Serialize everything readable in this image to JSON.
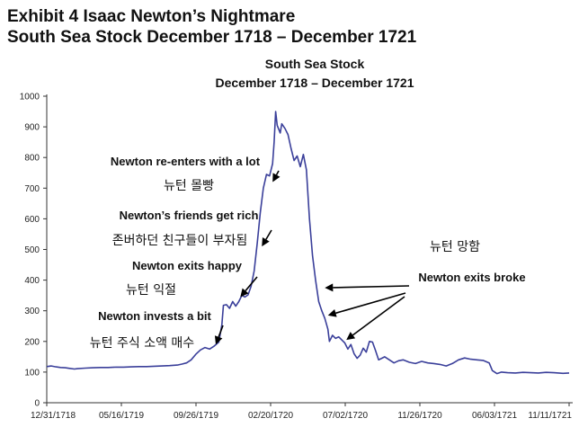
{
  "exhibit": {
    "line1": "Exhibit 4  Isaac Newton’s Nightmare",
    "line2": "South Sea Stock December 1718 – December 1721"
  },
  "chart_data": {
    "type": "line",
    "title": "South Sea Stock",
    "subtitle": "December 1718 – December 1721",
    "xlabel": "",
    "ylabel": "",
    "ylim": [
      0,
      1000
    ],
    "yticks": [
      0,
      100,
      200,
      300,
      400,
      500,
      600,
      700,
      800,
      900,
      1000
    ],
    "x_tick_labels": [
      "12/31/1718",
      "05/16/1719",
      "09/26/1719",
      "02/20/1720",
      "07/02/1720",
      "11/26/1720",
      "06/03/1721",
      "11/11/1721"
    ],
    "grid": false,
    "legend": "none",
    "line_color": "#3a3f9a",
    "series": [
      {
        "name": "",
        "points": [
          [
            0,
            118
          ],
          [
            3,
            120
          ],
          [
            6,
            117
          ],
          [
            9,
            115
          ],
          [
            12,
            114
          ],
          [
            15,
            112
          ],
          [
            18,
            110
          ],
          [
            20,
            111
          ],
          [
            25,
            113
          ],
          [
            30,
            114
          ],
          [
            35,
            115
          ],
          [
            40,
            115
          ],
          [
            45,
            116
          ],
          [
            50,
            116
          ],
          [
            55,
            117
          ],
          [
            60,
            118
          ],
          [
            65,
            118
          ],
          [
            70,
            119
          ],
          [
            75,
            120
          ],
          [
            80,
            121
          ],
          [
            85,
            123
          ],
          [
            88,
            126
          ],
          [
            91,
            130
          ],
          [
            94,
            140
          ],
          [
            97,
            158
          ],
          [
            100,
            172
          ],
          [
            103,
            180
          ],
          [
            106,
            175
          ],
          [
            109,
            185
          ],
          [
            112,
            198
          ],
          [
            114,
            255
          ],
          [
            115,
            318
          ],
          [
            117,
            320
          ],
          [
            119,
            308
          ],
          [
            121,
            330
          ],
          [
            123,
            315
          ],
          [
            125,
            330
          ],
          [
            127,
            350
          ],
          [
            129,
            345
          ],
          [
            131,
            352
          ],
          [
            133,
            380
          ],
          [
            135,
            430
          ],
          [
            137,
            520
          ],
          [
            139,
            620
          ],
          [
            141,
            700
          ],
          [
            143,
            745
          ],
          [
            145,
            740
          ],
          [
            147,
            780
          ],
          [
            148,
            850
          ],
          [
            149,
            950
          ],
          [
            150,
            905
          ],
          [
            152,
            880
          ],
          [
            153,
            910
          ],
          [
            155,
            895
          ],
          [
            157,
            875
          ],
          [
            159,
            830
          ],
          [
            161,
            790
          ],
          [
            163,
            805
          ],
          [
            165,
            770
          ],
          [
            167,
            810
          ],
          [
            169,
            760
          ],
          [
            171,
            600
          ],
          [
            173,
            480
          ],
          [
            175,
            400
          ],
          [
            177,
            330
          ],
          [
            179,
            300
          ],
          [
            181,
            275
          ],
          [
            183,
            240
          ],
          [
            184,
            200
          ],
          [
            186,
            220
          ],
          [
            188,
            210
          ],
          [
            190,
            215
          ],
          [
            192,
            205
          ],
          [
            194,
            195
          ],
          [
            196,
            175
          ],
          [
            198,
            190
          ],
          [
            200,
            160
          ],
          [
            202,
            145
          ],
          [
            204,
            155
          ],
          [
            206,
            178
          ],
          [
            208,
            165
          ],
          [
            210,
            200
          ],
          [
            212,
            198
          ],
          [
            214,
            170
          ],
          [
            216,
            140
          ],
          [
            218,
            145
          ],
          [
            220,
            150
          ],
          [
            223,
            140
          ],
          [
            226,
            130
          ],
          [
            229,
            137
          ],
          [
            232,
            140
          ],
          [
            236,
            132
          ],
          [
            240,
            128
          ],
          [
            244,
            135
          ],
          [
            248,
            130
          ],
          [
            252,
            128
          ],
          [
            256,
            125
          ],
          [
            260,
            120
          ],
          [
            264,
            128
          ],
          [
            268,
            140
          ],
          [
            272,
            146
          ],
          [
            276,
            142
          ],
          [
            280,
            140
          ],
          [
            284,
            138
          ],
          [
            288,
            130
          ],
          [
            290,
            105
          ],
          [
            293,
            95
          ],
          [
            296,
            100
          ],
          [
            300,
            98
          ],
          [
            305,
            97
          ],
          [
            310,
            99
          ],
          [
            315,
            98
          ],
          [
            320,
            97
          ],
          [
            325,
            99
          ],
          [
            330,
            98
          ],
          [
            336,
            96
          ],
          [
            340,
            97
          ]
        ]
      }
    ],
    "annotations": [
      {
        "text": "Newton invests a bit",
        "korean": "뉴턴 주식 소액 매수",
        "x": 110,
        "y": 190
      },
      {
        "text": "Newton exits happy",
        "korean": "뉴턴 익절",
        "x": 126,
        "y": 345
      },
      {
        "text": "Newton’s friends get rich",
        "korean": "존버하던 친구들이 부자됨",
        "x": 140,
        "y": 510
      },
      {
        "text": "Newton re-enters with a lot",
        "korean": "뉴턴 몰빵",
        "x": 147,
        "y": 720
      },
      {
        "text": "Newton exits broke",
        "korean": "뉴턴 망함",
        "targets": [
          [
            181,
            375
          ],
          [
            183,
            285
          ],
          [
            195,
            205
          ]
        ]
      }
    ]
  }
}
